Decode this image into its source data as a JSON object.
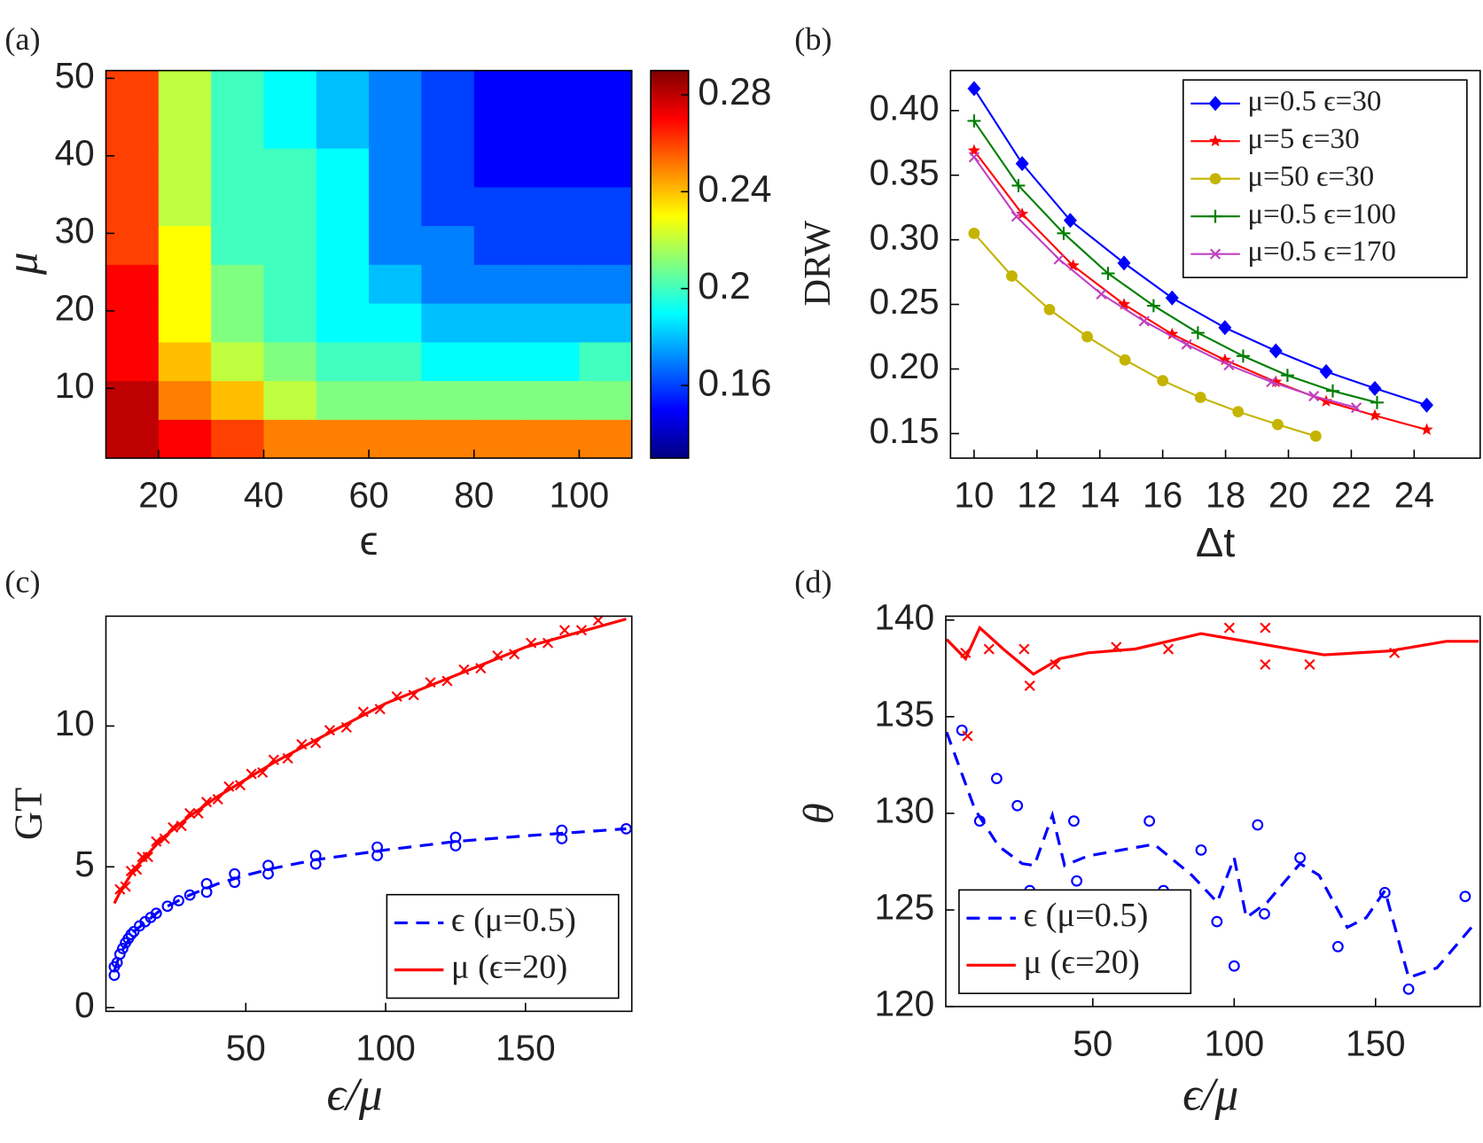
{
  "chart_data": [
    {
      "type": "heatmap",
      "panel": "(a)",
      "xlabel": "ϵ",
      "ylabel": "μ",
      "x": [
        15,
        25,
        35,
        45,
        55,
        65,
        75,
        85,
        95,
        105
      ],
      "y": [
        3.5,
        8.5,
        13.5,
        18.5,
        23.5,
        28.5,
        33.5,
        38.5,
        43.5,
        48.5
      ],
      "z": [
        [
          0.28,
          0.27,
          0.26,
          0.25,
          0.25,
          0.25,
          0.25,
          0.25,
          0.25,
          0.25
        ],
        [
          0.28,
          0.25,
          0.24,
          0.22,
          0.21,
          0.21,
          0.21,
          0.21,
          0.21,
          0.21
        ],
        [
          0.27,
          0.24,
          0.22,
          0.21,
          0.2,
          0.2,
          0.19,
          0.19,
          0.19,
          0.2
        ],
        [
          0.27,
          0.23,
          0.21,
          0.2,
          0.19,
          0.19,
          0.18,
          0.18,
          0.18,
          0.18
        ],
        [
          0.27,
          0.23,
          0.21,
          0.2,
          0.19,
          0.18,
          0.17,
          0.17,
          0.17,
          0.17
        ],
        [
          0.26,
          0.23,
          0.2,
          0.2,
          0.19,
          0.17,
          0.17,
          0.16,
          0.16,
          0.16
        ],
        [
          0.26,
          0.22,
          0.2,
          0.2,
          0.19,
          0.17,
          0.16,
          0.16,
          0.16,
          0.16
        ],
        [
          0.26,
          0.22,
          0.2,
          0.2,
          0.19,
          0.17,
          0.16,
          0.15,
          0.15,
          0.15
        ],
        [
          0.26,
          0.22,
          0.2,
          0.19,
          0.18,
          0.17,
          0.16,
          0.15,
          0.15,
          0.15
        ],
        [
          0.26,
          0.22,
          0.2,
          0.19,
          0.18,
          0.17,
          0.16,
          0.15,
          0.15,
          0.15
        ]
      ],
      "xlim": [
        10,
        110
      ],
      "ylim": [
        1,
        51
      ],
      "xticks": [
        20,
        40,
        60,
        80,
        100
      ],
      "yticks": [
        10,
        20,
        30,
        40,
        50
      ],
      "colormap": "jet",
      "clim": [
        0.13,
        0.29
      ],
      "cticks": [
        0.16,
        0.2,
        0.24,
        0.28
      ]
    },
    {
      "type": "line",
      "panel": "(b)",
      "xlabel": "Δt",
      "ylabel": "DRW",
      "xlim": [
        9.25,
        26.1
      ],
      "ylim": [
        0.131,
        0.431
      ],
      "xticks": [
        10,
        12,
        14,
        16,
        18,
        20,
        22,
        24
      ],
      "yticks": [
        0.15,
        {
          "value": 0.2,
          "label": "0.20"
        },
        0.25,
        {
          "value": 0.3,
          "label": "0.30"
        },
        0.35,
        {
          "value": 0.4,
          "label": "0.40"
        }
      ],
      "legend": "upper right",
      "series": [
        {
          "name": "μ=0.5 ϵ=30",
          "color": "#0000ff",
          "marker": "diamond",
          "x": [
            10,
            11.53,
            13.06,
            14.77,
            16.3,
            17.98,
            19.6,
            21.2,
            22.75,
            24.4
          ],
          "values": [
            0.417,
            0.359,
            0.315,
            0.282,
            0.255,
            0.232,
            0.214,
            0.198,
            0.185,
            0.172
          ]
        },
        {
          "name": "μ=5 ϵ=30",
          "color": "#ff0000",
          "marker": "star",
          "x": [
            10,
            11.53,
            13.15,
            14.77,
            16.3,
            17.98,
            19.6,
            21.2,
            22.75,
            24.4
          ],
          "values": [
            0.369,
            0.32,
            0.28,
            0.25,
            0.227,
            0.207,
            0.19,
            0.175,
            0.164,
            0.153
          ]
        },
        {
          "name": "μ=50 ϵ=30",
          "color": "#c4b400",
          "marker": "dot",
          "x": [
            10,
            11.2,
            12.4,
            13.6,
            14.8,
            16,
            17.2,
            18.4,
            19.66,
            20.87
          ],
          "values": [
            0.305,
            0.272,
            0.246,
            0.225,
            0.207,
            0.191,
            0.178,
            0.167,
            0.157,
            0.148
          ]
        },
        {
          "name": "μ=0.5 ϵ=100",
          "color": "#007f00",
          "marker": "plus",
          "x": [
            10,
            11.41,
            12.85,
            14.26,
            15.71,
            17.12,
            18.56,
            19.97,
            21.41,
            22.82
          ],
          "values": [
            0.392,
            0.342,
            0.305,
            0.274,
            0.249,
            0.228,
            0.21,
            0.195,
            0.183,
            0.174
          ]
        },
        {
          "name": "μ=0.5 ϵ=170",
          "color": "#c040c0",
          "marker": "cross",
          "x": [
            10,
            11.35,
            12.7,
            14.05,
            15.41,
            16.76,
            18.11,
            19.46,
            20.81,
            22.16
          ],
          "values": [
            0.364,
            0.318,
            0.285,
            0.258,
            0.237,
            0.219,
            0.203,
            0.19,
            0.179,
            0.17
          ]
        }
      ]
    },
    {
      "type": "line",
      "panel": "(c)",
      "xlabel": "ϵ/μ",
      "ylabel": "GT",
      "xlim": [
        0,
        188
      ],
      "ylim": [
        -0.13,
        13.9
      ],
      "xticks": [
        50,
        100,
        150
      ],
      "yticks": [
        0,
        5,
        10
      ],
      "legend": "lower right",
      "series": [
        {
          "name": "ϵ (μ=0.5)",
          "color": "#0000ff",
          "dash": "dashed",
          "marker": "circle",
          "x": [
            3,
            5,
            10,
            20,
            30,
            40,
            50,
            60,
            75,
            100,
            125,
            150,
            186
          ],
          "values": [
            1.3,
            1.9,
            2.7,
            3.5,
            4.0,
            4.4,
            4.7,
            4.95,
            5.25,
            5.6,
            5.9,
            6.1,
            6.35
          ],
          "marker_x": [
            3,
            3,
            4,
            5,
            6,
            7,
            8,
            9,
            10,
            12,
            14,
            16,
            18,
            22,
            26,
            30,
            36,
            36,
            46,
            46,
            58,
            58,
            75,
            75,
            97,
            97,
            125,
            125,
            163,
            163,
            186
          ],
          "marker_values": [
            1.15,
            1.45,
            1.6,
            1.9,
            2.1,
            2.3,
            2.45,
            2.6,
            2.7,
            2.9,
            3.05,
            3.2,
            3.35,
            3.6,
            3.8,
            4.0,
            4.1,
            4.4,
            4.45,
            4.75,
            4.75,
            5.05,
            5.1,
            5.4,
            5.4,
            5.7,
            5.75,
            6.05,
            6.0,
            6.3,
            6.35
          ]
        },
        {
          "name": "μ (ϵ=20)",
          "color": "#ff0000",
          "marker": "cross",
          "x": [
            3,
            5,
            10,
            20,
            30,
            40,
            50,
            60,
            75,
            100,
            125,
            150,
            186
          ],
          "values": [
            3.7,
            4.1,
            4.9,
            6.0,
            6.8,
            7.5,
            8.1,
            8.7,
            9.5,
            10.8,
            11.8,
            12.8,
            13.8
          ],
          "marker_x": [
            5,
            7,
            9,
            11,
            13,
            15,
            18,
            21,
            24,
            27,
            30,
            33,
            36,
            40,
            44,
            48,
            52,
            56,
            60,
            65,
            70,
            75,
            80,
            86,
            92,
            98,
            104,
            110,
            116,
            122,
            128,
            134,
            140,
            146,
            152,
            158,
            164,
            170,
            176
          ],
          "marker_values": [
            4.2,
            4.3,
            4.85,
            4.9,
            5.35,
            5.35,
            5.9,
            6.0,
            6.4,
            6.45,
            6.9,
            6.9,
            7.3,
            7.4,
            7.85,
            7.9,
            8.3,
            8.35,
            8.8,
            8.85,
            9.35,
            9.4,
            9.85,
            9.95,
            10.5,
            10.6,
            11.05,
            11.1,
            11.55,
            11.6,
            12.0,
            12.05,
            12.5,
            12.55,
            12.95,
            12.95,
            13.4,
            13.4,
            13.75
          ]
        }
      ]
    },
    {
      "type": "line",
      "panel": "(d)",
      "xlabel": "ϵ/μ",
      "ylabel": "θ",
      "xlim": [
        -2,
        187
      ],
      "ylim": [
        120,
        140.2
      ],
      "xticks": [
        50,
        100,
        150
      ],
      "yticks": [
        120,
        125,
        130,
        135,
        140
      ],
      "legend": "lower left",
      "series": [
        {
          "name": "ϵ (μ=0.5)",
          "color": "#0000ff",
          "dash": "dashed",
          "marker": "circle",
          "x": [
            -1.7,
            8.3,
            16.7,
            25,
            29.3,
            35.7,
            40,
            48.3,
            71.7,
            85,
            94,
            100,
            104.3,
            111.7,
            123.3,
            130,
            140,
            146.7,
            153.3,
            161.7,
            171.7,
            185.7
          ],
          "values": [
            134.2,
            130.2,
            128.3,
            127.4,
            127.3,
            129.9,
            127.3,
            127.8,
            128.4,
            126.8,
            125.4,
            127.7,
            124.6,
            125.4,
            127.4,
            126.8,
            124.1,
            124.6,
            126.0,
            121.5,
            122.0,
            124.4
          ],
          "marker_x": [
            3.7,
            10,
            16,
            23.3,
            27.7,
            43.3,
            44.3,
            70,
            75,
            88.3,
            93.9,
            100,
            108.3,
            110.7,
            123.3,
            136.7,
            153.3,
            161.7,
            181.7
          ],
          "marker_values": [
            134.3,
            129.6,
            131.8,
            130.4,
            126.0,
            129.6,
            126.5,
            129.6,
            126.0,
            128.1,
            124.4,
            122.1,
            129.4,
            124.8,
            127.7,
            123.1,
            125.9,
            120.9,
            125.7
          ]
        },
        {
          "name": "μ (ϵ=20)",
          "color": "#ff0000",
          "marker": "cross",
          "x": [
            -1.7,
            5,
            10,
            18.3,
            29,
            38.3,
            48.3,
            65,
            88.3,
            108.3,
            131.7,
            155,
            175,
            186.5
          ],
          "values": [
            139.0,
            138.0,
            139.6,
            138.5,
            137.2,
            138.0,
            138.3,
            138.5,
            139.3,
            138.8,
            138.2,
            138.4,
            138.9,
            138.9
          ],
          "marker_x": [
            5,
            5.7,
            13.3,
            25.7,
            27.7,
            36.7,
            58.3,
            76.7,
            98.3,
            111,
            111,
            126.7,
            156.7
          ],
          "marker_values": [
            138.3,
            134.0,
            138.5,
            138.5,
            136.6,
            137.7,
            138.6,
            138.5,
            139.6,
            139.6,
            137.7,
            137.7,
            138.3
          ]
        }
      ]
    }
  ]
}
